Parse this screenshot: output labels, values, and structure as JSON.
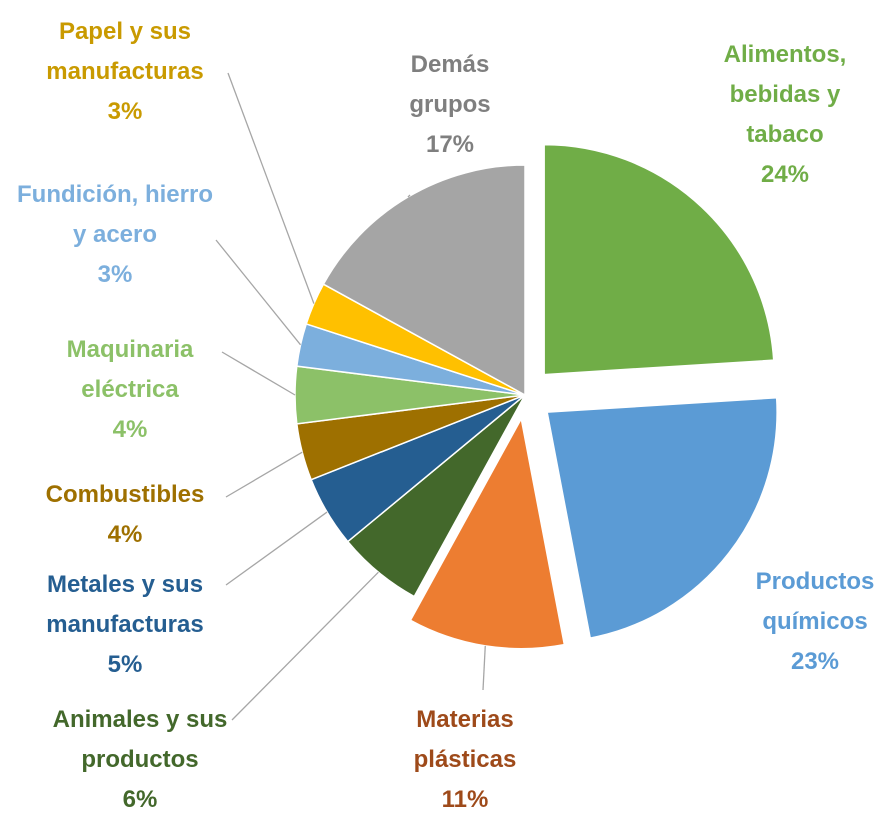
{
  "chart_data": {
    "type": "pie",
    "categories": [
      "Alimentos, bebidas y tabaco",
      "Productos químicos",
      "Materias plásticas",
      "Animales y sus productos",
      "Metales y sus manufacturas",
      "Combustibles",
      "Maquinaria eléctrica",
      "Fundición, hierro y acero",
      "Papel y sus manufacturas",
      "Demás grupos"
    ],
    "values": [
      24,
      23,
      11,
      6,
      5,
      4,
      4,
      3,
      3,
      17
    ],
    "value_labels": [
      "24%",
      "23%",
      "11%",
      "6%",
      "5%",
      "4%",
      "4%",
      "3%",
      "3%",
      "17%"
    ],
    "colors": [
      "#70ad47",
      "#5b9bd5",
      "#ed7d31",
      "#43682b",
      "#255e91",
      "#9e7000",
      "#8cc168",
      "#7cafdd",
      "#ffc000",
      "#a5a5a5"
    ],
    "label_colors": [
      "#70ad47",
      "#5b9bd5",
      "#9e4a1a",
      "#43682b",
      "#255e91",
      "#9e7000",
      "#8cc168",
      "#7cafdd",
      "#c99a00",
      "#7f7f7f"
    ]
  }
}
